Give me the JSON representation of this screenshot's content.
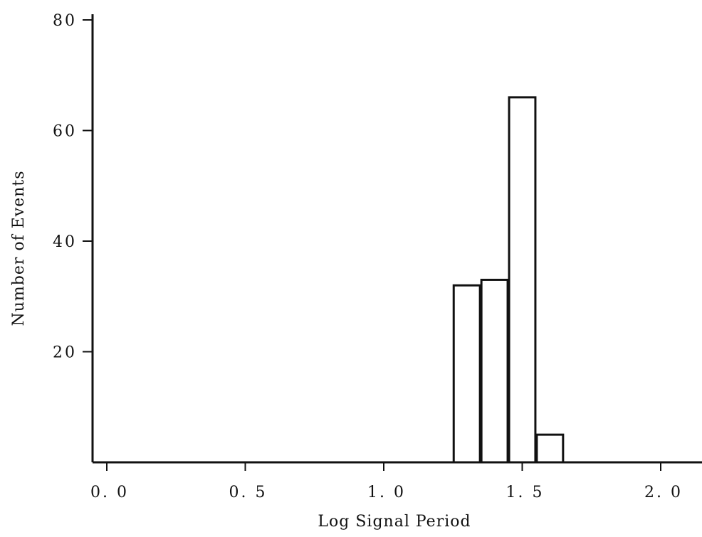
{
  "chart_data": {
    "type": "bar",
    "title": "",
    "xlabel": "Log Signal Period",
    "ylabel": "Number of Events",
    "xlim": [
      -0.05,
      2.15
    ],
    "ylim": [
      0,
      80
    ],
    "x_ticks": [
      0.0,
      0.5,
      1.0,
      1.5,
      2.0
    ],
    "x_tick_labels": [
      "0. 0",
      "0. 5",
      "1. 0",
      "1. 5",
      "2. 0"
    ],
    "y_ticks": [
      20,
      40,
      60,
      80
    ],
    "y_tick_labels": [
      "20",
      "40",
      "60",
      "80"
    ],
    "bin_width": 0.1,
    "bars": [
      {
        "x_start": 1.25,
        "x_end": 1.35,
        "value": 32
      },
      {
        "x_start": 1.35,
        "x_end": 1.45,
        "value": 33
      },
      {
        "x_start": 1.45,
        "x_end": 1.55,
        "value": 66
      },
      {
        "x_start": 1.55,
        "x_end": 1.65,
        "value": 5
      }
    ],
    "grid": false,
    "legend": "none",
    "colors": {
      "bar_fill": "#ffffff",
      "bar_stroke": "#111111",
      "axis": "#111111"
    }
  }
}
